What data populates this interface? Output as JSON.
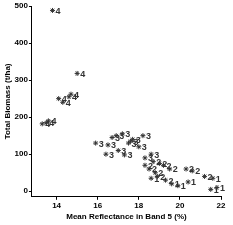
{
  "chart_data": {
    "type": "scatter",
    "x_label": "Mean Reflectance in Band 5 (%)",
    "y_label": "Total Biomass (t/ha)",
    "xlim": [
      12.8,
      22
    ],
    "xticks": [
      14,
      16,
      18,
      20,
      22
    ],
    "ylim": [
      -15,
      500
    ],
    "yticks": [
      0,
      100,
      200,
      300,
      400,
      500
    ],
    "grid": false,
    "marker": "star",
    "data_labels": true,
    "series": [
      {
        "name": "4",
        "color": "#333333",
        "x": [
          13.8,
          15.0,
          14.1,
          14.3,
          14.6,
          14.7,
          13.3,
          13.5,
          13.6
        ],
        "values": [
          488,
          318,
          250,
          240,
          255,
          262,
          182,
          185,
          190
        ]
      },
      {
        "name": "3",
        "color": "#333333",
        "x": [
          15.9,
          16.5,
          16.7,
          16.9,
          17.2,
          17.5,
          17.6,
          17.7,
          16.4,
          17.3,
          18.2,
          18.0,
          18.6,
          18.3,
          17.0
        ],
        "values": [
          130,
          125,
          145,
          150,
          155,
          130,
          135,
          140,
          100,
          98,
          150,
          120,
          100,
          90,
          110
        ]
      },
      {
        "name": "2",
        "color": "#333333",
        "x": [
          18.3,
          18.5,
          18.7,
          19.0,
          19.2,
          19.5,
          18.8,
          19.3,
          20.3,
          20.6,
          21.2,
          18.9
        ],
        "values": [
          70,
          60,
          80,
          75,
          70,
          60,
          50,
          30,
          60,
          55,
          40,
          40
        ]
      },
      {
        "name": "1",
        "color": "#333333",
        "x": [
          19.6,
          19.9,
          18.6,
          21.6,
          21.8,
          21.5,
          20.4
        ],
        "values": [
          20,
          15,
          35,
          35,
          10,
          5,
          25
        ]
      }
    ]
  }
}
